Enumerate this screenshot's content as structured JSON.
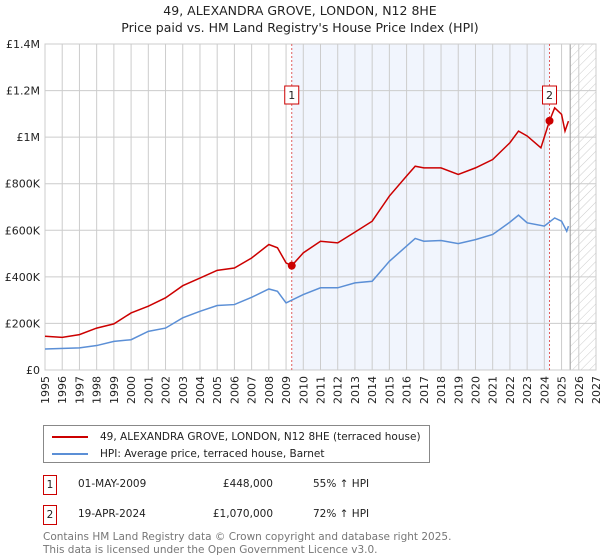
{
  "title_line1": "49, ALEXANDRA GROVE, LONDON, N12 8HE",
  "title_line2": "Price paid vs. HM Land Registry's House Price Index (HPI)",
  "chart_data": {
    "type": "line",
    "xlim": [
      1995,
      2027
    ],
    "ylim": [
      0,
      1400000
    ],
    "x_ticks": [
      "1995",
      "1996",
      "1997",
      "1998",
      "1999",
      "2000",
      "2001",
      "2002",
      "2003",
      "2004",
      "2005",
      "2006",
      "2007",
      "2008",
      "2009",
      "2010",
      "2011",
      "2012",
      "2013",
      "2014",
      "2015",
      "2016",
      "2017",
      "2018",
      "2019",
      "2020",
      "2021",
      "2022",
      "2023",
      "2024",
      "2025",
      "2026",
      "2027"
    ],
    "y_ticks": [
      {
        "v": 0,
        "label": "£0"
      },
      {
        "v": 200000,
        "label": "£200K"
      },
      {
        "v": 400000,
        "label": "£400K"
      },
      {
        "v": 600000,
        "label": "£600K"
      },
      {
        "v": 800000,
        "label": "£800K"
      },
      {
        "v": 1000000,
        "label": "£1M"
      },
      {
        "v": 1200000,
        "label": "£1.2M"
      },
      {
        "v": 1400000,
        "label": "£1.4M"
      }
    ],
    "grid": true,
    "shaded_range": [
      2009.33,
      2024.3
    ],
    "forecast_hatch_from": 2025.5,
    "series": [
      {
        "name": "49, ALEXANDRA GROVE, LONDON, N12 8HE (terraced house)",
        "color": "#cc0000",
        "x": [
          1995,
          1996,
          1997,
          1998,
          1999,
          2000,
          2001,
          2002,
          2003,
          2004,
          2005,
          2006,
          2007,
          2008,
          2008.5,
          2009,
          2009.33,
          2010,
          2011,
          2012,
          2013,
          2014,
          2015,
          2016,
          2016.5,
          2017,
          2018,
          2019,
          2020,
          2021,
          2022,
          2022.5,
          2023,
          2023.8,
          2024.3,
          2024.6,
          2025,
          2025.2,
          2025.4
        ],
        "y": [
          145000,
          140000,
          152000,
          180000,
          198000,
          245000,
          274000,
          310000,
          362000,
          395000,
          428000,
          438000,
          481000,
          539000,
          525000,
          460000,
          448000,
          503000,
          553000,
          546000,
          592000,
          639000,
          747000,
          833000,
          875000,
          868000,
          868000,
          840000,
          868000,
          904000,
          976000,
          1026000,
          1005000,
          954000,
          1070000,
          1126000,
          1098000,
          1026000,
          1069000
        ]
      },
      {
        "name": "HPI: Average price, terraced house, Barnet",
        "color": "#5b8fd6",
        "x": [
          1995,
          1997,
          1998,
          1999,
          2000,
          2001,
          2002,
          2003,
          2004,
          2005,
          2006,
          2007,
          2008,
          2008.5,
          2009,
          2010,
          2011,
          2012,
          2013,
          2014,
          2015,
          2016,
          2016.5,
          2017,
          2018,
          2019,
          2020,
          2021,
          2022,
          2022.5,
          2023,
          2024,
          2024.6,
          2025,
          2025.3,
          2025.4
        ],
        "y": [
          90000,
          95000,
          105000,
          123000,
          130000,
          166000,
          180000,
          224000,
          252000,
          277000,
          281000,
          312000,
          348000,
          338000,
          288000,
          324000,
          353000,
          353000,
          374000,
          381000,
          467000,
          532000,
          565000,
          553000,
          556000,
          543000,
          560000,
          582000,
          635000,
          665000,
          632000,
          618000,
          653000,
          639000,
          596000,
          618000
        ]
      }
    ],
    "sales": [
      {
        "label": "1",
        "x": 2009.33,
        "y": 448000
      },
      {
        "label": "2",
        "x": 2024.3,
        "y": 1070000
      }
    ]
  },
  "legend": {
    "red": "49, ALEXANDRA GROVE, LONDON, N12 8HE (terraced house)",
    "blue": "HPI: Average price, terraced house, Barnet"
  },
  "transactions": [
    {
      "num": "1",
      "date": "01-MAY-2009",
      "price": "£448,000",
      "hpi": "55% ↑ HPI"
    },
    {
      "num": "2",
      "date": "19-APR-2024",
      "price": "£1,070,000",
      "hpi": "72% ↑ HPI"
    }
  ],
  "footer": {
    "line1": "Contains HM Land Registry data © Crown copyright and database right 2025.",
    "line2": "This data is licensed under the Open Government Licence v3.0."
  }
}
